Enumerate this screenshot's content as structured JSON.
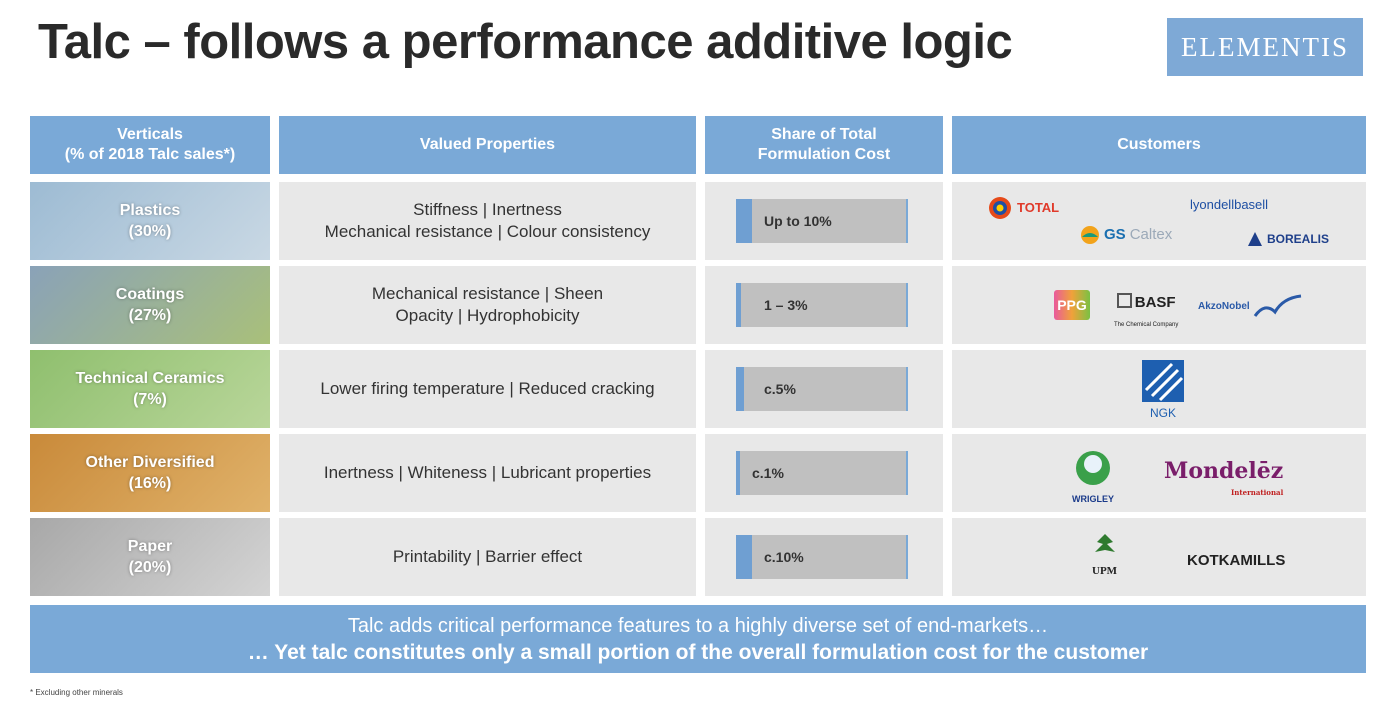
{
  "title": "Talc – follows a performance additive logic",
  "brand": "ELEMENTIS",
  "headers": {
    "verticals": "Verticals\n(% of 2018 Talc sales*)",
    "properties": "Valued Properties",
    "share": "Share of Total\nFormulation Cost",
    "customers": "Customers"
  },
  "rows": [
    {
      "vertical": "Plastics\n(30%)",
      "properties": "Stiffness | Inertness\nMechanical resistance | Colour consistency",
      "share_label": "Up to 10%",
      "share_pct": 10,
      "colors": [
        "#9dbbd3",
        "#c9d8e4"
      ]
    },
    {
      "vertical": "Coatings\n(27%)",
      "properties": "Mechanical resistance | Sheen\nOpacity | Hydrophobicity",
      "share_label": "1 – 3%",
      "share_pct": 3,
      "colors": [
        "#8aa2b8",
        "#a9c07a"
      ]
    },
    {
      "vertical": "Technical Ceramics\n(7%)",
      "properties": "Lower firing temperature | Reduced cracking",
      "share_label": "c.5%",
      "share_pct": 5,
      "colors": [
        "#8fbf6e",
        "#b9d69a"
      ]
    },
    {
      "vertical": "Other Diversified\n(16%)",
      "properties": "Inertness | Whiteness | Lubricant properties",
      "share_label": "c.1%",
      "share_pct": 1,
      "colors": [
        "#c98a3a",
        "#e0b26a"
      ]
    },
    {
      "vertical": "Paper\n(20%)",
      "properties": "Printability | Barrier effect",
      "share_label": "c.10%",
      "share_pct": 10,
      "colors": [
        "#a8a8a8",
        "#d4d4d4"
      ]
    }
  ],
  "customers": {
    "total": "TOTAL",
    "lyondell": "lyondellbasell",
    "gs": "GS",
    "caltex": "Caltex",
    "borealis": "BOREALIS",
    "ppg": "PPG",
    "basf": "BASF",
    "basf_sub": "The Chemical Company",
    "akzo": "AkzoNobel",
    "ngk": "NGK",
    "wrigley": "WRIGLEY",
    "mondelez": "Mondelēz",
    "mondelez_sub": "International",
    "upm": "UPM",
    "kotkamills": "KOTKAMILLS"
  },
  "banner": {
    "line1": "Talc adds critical performance features to a highly diverse set of end-markets…",
    "line2": "… Yet talc constitutes only a small portion of the overall formulation cost for the customer"
  },
  "footnote": "* Excluding other minerals",
  "accent": "#7aa9d7"
}
